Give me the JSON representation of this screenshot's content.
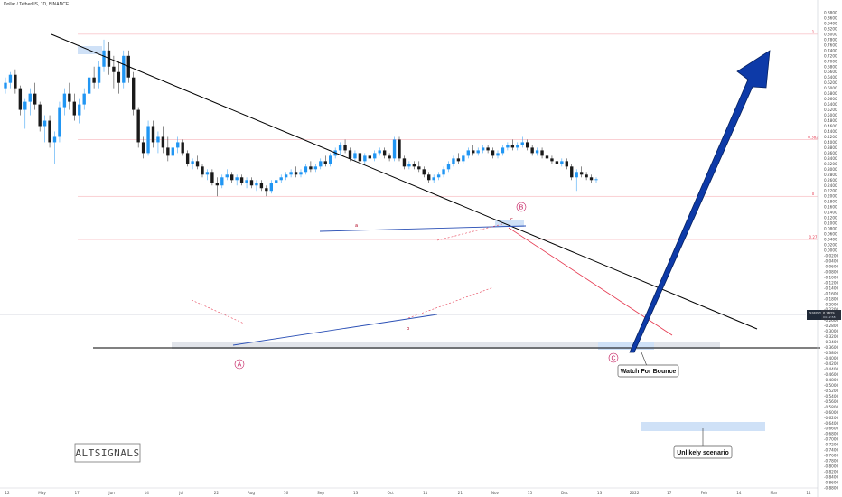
{
  "header": {
    "title": "Dollar / TetherUS, 1D, BINANCE"
  },
  "watermark": "ALTSIGNALS",
  "colors": {
    "up": "#2196f3",
    "down": "#1a1a1a",
    "trendline": "#000000",
    "blue_line": "#2a4fb5",
    "red_line": "#e53950",
    "fib": "#f5a0a8",
    "big_arrow": "#0d3aa8",
    "zone": "#cfe1f7",
    "marker": "#c2185b"
  },
  "annotations": {
    "point_A": "A",
    "point_B": "B",
    "point_C": "C",
    "wave_a": "a",
    "wave_b": "b",
    "wave_c": "c",
    "callout_bounce": "Watch For Bounce",
    "callout_unlikely": "Unlikely scenario"
  },
  "chart_data": {
    "type": "candlestick",
    "title": "Dollar / TetherUS, 1D, BINANCE",
    "ylim": [
      -0.88,
      0.9
    ],
    "y_ticks": [
      0.88,
      0.86,
      0.84,
      0.82,
      0.8,
      0.78,
      0.76,
      0.74,
      0.72,
      0.7,
      0.68,
      0.66,
      0.64,
      0.62,
      0.6,
      0.58,
      0.56,
      0.54,
      0.52,
      0.5,
      0.48,
      0.46,
      0.44,
      0.42,
      0.4,
      0.38,
      0.36,
      0.34,
      0.32,
      0.3,
      0.28,
      0.26,
      0.24,
      0.22,
      0.2,
      0.18,
      0.16,
      0.14,
      0.12,
      0.1,
      0.08,
      0.06,
      0.04,
      0.02,
      0.0,
      -0.02,
      -0.04,
      -0.06,
      -0.08,
      -0.1,
      -0.12,
      -0.14,
      -0.16,
      -0.18,
      -0.2,
      -0.22,
      -0.24,
      -0.26,
      -0.28,
      -0.3,
      -0.32,
      -0.34,
      -0.36,
      -0.38,
      -0.4,
      -0.42,
      -0.44,
      -0.46,
      -0.48,
      -0.5,
      -0.52,
      -0.54,
      -0.56,
      -0.58,
      -0.6,
      -0.62,
      -0.64,
      -0.66,
      -0.68,
      -0.7,
      -0.72,
      -0.74,
      -0.76,
      -0.78,
      -0.8,
      -0.82,
      -0.84,
      -0.86,
      -0.88
    ],
    "x_ticks": [
      "12",
      "May",
      "17",
      "Jun",
      "14",
      "Jul",
      "22",
      "Aug",
      "16",
      "Sep",
      "13",
      "Oct",
      "11",
      "21",
      "Nov",
      "15",
      "Dec",
      "13",
      "2022",
      "17",
      "Feb",
      "14",
      "Mar",
      "14"
    ],
    "current_price": {
      "label": "DLNUSDT",
      "value": "0.2629",
      "countdown": "04:12:58"
    },
    "fib_levels": [
      {
        "label": "1",
        "value": 0.8
      },
      {
        "label": "0.382",
        "value": 0.41
      },
      {
        "label": "0",
        "value": 0.2
      },
      {
        "label": "0.27",
        "value": 0.04
      }
    ],
    "candles": [
      [
        0.6,
        0.64,
        0.58,
        0.62
      ],
      [
        0.62,
        0.66,
        0.6,
        0.65
      ],
      [
        0.65,
        0.67,
        0.58,
        0.6
      ],
      [
        0.6,
        0.61,
        0.5,
        0.52
      ],
      [
        0.52,
        0.56,
        0.45,
        0.55
      ],
      [
        0.55,
        0.6,
        0.5,
        0.58
      ],
      [
        0.58,
        0.62,
        0.52,
        0.54
      ],
      [
        0.54,
        0.55,
        0.44,
        0.46
      ],
      [
        0.46,
        0.5,
        0.4,
        0.48
      ],
      [
        0.48,
        0.5,
        0.38,
        0.4
      ],
      [
        0.4,
        0.44,
        0.32,
        0.42
      ],
      [
        0.42,
        0.55,
        0.4,
        0.53
      ],
      [
        0.53,
        0.6,
        0.5,
        0.58
      ],
      [
        0.58,
        0.62,
        0.52,
        0.55
      ],
      [
        0.55,
        0.58,
        0.48,
        0.5
      ],
      [
        0.5,
        0.56,
        0.47,
        0.54
      ],
      [
        0.54,
        0.6,
        0.52,
        0.58
      ],
      [
        0.58,
        0.66,
        0.56,
        0.64
      ],
      [
        0.64,
        0.68,
        0.6,
        0.62
      ],
      [
        0.62,
        0.7,
        0.6,
        0.68
      ],
      [
        0.68,
        0.78,
        0.66,
        0.74
      ],
      [
        0.74,
        0.77,
        0.65,
        0.68
      ],
      [
        0.68,
        0.72,
        0.6,
        0.66
      ],
      [
        0.66,
        0.7,
        0.58,
        0.62
      ],
      [
        0.62,
        0.74,
        0.6,
        0.72
      ],
      [
        0.72,
        0.74,
        0.62,
        0.64
      ],
      [
        0.64,
        0.66,
        0.5,
        0.52
      ],
      [
        0.52,
        0.53,
        0.38,
        0.4
      ],
      [
        0.4,
        0.42,
        0.34,
        0.36
      ],
      [
        0.36,
        0.48,
        0.35,
        0.46
      ],
      [
        0.46,
        0.48,
        0.38,
        0.4
      ],
      [
        0.4,
        0.44,
        0.36,
        0.42
      ],
      [
        0.42,
        0.46,
        0.36,
        0.38
      ],
      [
        0.38,
        0.42,
        0.33,
        0.35
      ],
      [
        0.35,
        0.4,
        0.33,
        0.38
      ],
      [
        0.38,
        0.42,
        0.36,
        0.4
      ],
      [
        0.4,
        0.41,
        0.35,
        0.36
      ],
      [
        0.36,
        0.37,
        0.31,
        0.32
      ],
      [
        0.32,
        0.34,
        0.3,
        0.33
      ],
      [
        0.33,
        0.35,
        0.3,
        0.31
      ],
      [
        0.31,
        0.32,
        0.27,
        0.28
      ],
      [
        0.28,
        0.3,
        0.26,
        0.29
      ],
      [
        0.29,
        0.3,
        0.24,
        0.25
      ],
      [
        0.25,
        0.27,
        0.2,
        0.24
      ],
      [
        0.24,
        0.28,
        0.23,
        0.27
      ],
      [
        0.27,
        0.3,
        0.26,
        0.28
      ],
      [
        0.28,
        0.29,
        0.25,
        0.26
      ],
      [
        0.26,
        0.28,
        0.24,
        0.27
      ],
      [
        0.27,
        0.28,
        0.24,
        0.25
      ],
      [
        0.25,
        0.27,
        0.23,
        0.26
      ],
      [
        0.26,
        0.27,
        0.23,
        0.24
      ],
      [
        0.24,
        0.26,
        0.22,
        0.25
      ],
      [
        0.25,
        0.26,
        0.22,
        0.23
      ],
      [
        0.23,
        0.24,
        0.2,
        0.22
      ],
      [
        0.22,
        0.26,
        0.21,
        0.25
      ],
      [
        0.25,
        0.27,
        0.24,
        0.26
      ],
      [
        0.26,
        0.28,
        0.25,
        0.27
      ],
      [
        0.27,
        0.29,
        0.26,
        0.28
      ],
      [
        0.28,
        0.3,
        0.27,
        0.29
      ],
      [
        0.29,
        0.31,
        0.27,
        0.28
      ],
      [
        0.28,
        0.3,
        0.27,
        0.29
      ],
      [
        0.29,
        0.32,
        0.28,
        0.31
      ],
      [
        0.31,
        0.33,
        0.29,
        0.3
      ],
      [
        0.3,
        0.32,
        0.29,
        0.31
      ],
      [
        0.31,
        0.34,
        0.3,
        0.33
      ],
      [
        0.33,
        0.35,
        0.31,
        0.32
      ],
      [
        0.32,
        0.36,
        0.31,
        0.35
      ],
      [
        0.35,
        0.38,
        0.34,
        0.37
      ],
      [
        0.37,
        0.4,
        0.35,
        0.39
      ],
      [
        0.39,
        0.41,
        0.36,
        0.37
      ],
      [
        0.37,
        0.38,
        0.33,
        0.34
      ],
      [
        0.34,
        0.37,
        0.33,
        0.36
      ],
      [
        0.36,
        0.37,
        0.32,
        0.33
      ],
      [
        0.33,
        0.36,
        0.32,
        0.35
      ],
      [
        0.35,
        0.36,
        0.33,
        0.34
      ],
      [
        0.34,
        0.37,
        0.33,
        0.36
      ],
      [
        0.36,
        0.38,
        0.35,
        0.37
      ],
      [
        0.37,
        0.38,
        0.34,
        0.35
      ],
      [
        0.35,
        0.36,
        0.33,
        0.34
      ],
      [
        0.34,
        0.42,
        0.33,
        0.41
      ],
      [
        0.41,
        0.42,
        0.33,
        0.34
      ],
      [
        0.34,
        0.35,
        0.3,
        0.31
      ],
      [
        0.31,
        0.33,
        0.3,
        0.32
      ],
      [
        0.32,
        0.33,
        0.3,
        0.31
      ],
      [
        0.31,
        0.33,
        0.29,
        0.3
      ],
      [
        0.3,
        0.31,
        0.27,
        0.28
      ],
      [
        0.28,
        0.29,
        0.25,
        0.26
      ],
      [
        0.26,
        0.28,
        0.25,
        0.27
      ],
      [
        0.27,
        0.29,
        0.26,
        0.28
      ],
      [
        0.28,
        0.31,
        0.27,
        0.3
      ],
      [
        0.3,
        0.33,
        0.29,
        0.32
      ],
      [
        0.32,
        0.35,
        0.31,
        0.34
      ],
      [
        0.34,
        0.36,
        0.32,
        0.33
      ],
      [
        0.33,
        0.36,
        0.32,
        0.35
      ],
      [
        0.35,
        0.38,
        0.34,
        0.37
      ],
      [
        0.37,
        0.39,
        0.35,
        0.36
      ],
      [
        0.36,
        0.38,
        0.35,
        0.37
      ],
      [
        0.37,
        0.39,
        0.36,
        0.38
      ],
      [
        0.38,
        0.39,
        0.36,
        0.37
      ],
      [
        0.37,
        0.38,
        0.34,
        0.35
      ],
      [
        0.35,
        0.37,
        0.34,
        0.36
      ],
      [
        0.36,
        0.39,
        0.35,
        0.38
      ],
      [
        0.38,
        0.4,
        0.37,
        0.39
      ],
      [
        0.39,
        0.41,
        0.37,
        0.38
      ],
      [
        0.38,
        0.4,
        0.37,
        0.39
      ],
      [
        0.39,
        0.42,
        0.38,
        0.4
      ],
      [
        0.4,
        0.41,
        0.37,
        0.38
      ],
      [
        0.38,
        0.39,
        0.35,
        0.36
      ],
      [
        0.36,
        0.38,
        0.35,
        0.37
      ],
      [
        0.37,
        0.38,
        0.34,
        0.35
      ],
      [
        0.35,
        0.36,
        0.33,
        0.34
      ],
      [
        0.34,
        0.35,
        0.32,
        0.33
      ],
      [
        0.33,
        0.34,
        0.31,
        0.32
      ],
      [
        0.32,
        0.34,
        0.31,
        0.33
      ],
      [
        0.33,
        0.34,
        0.3,
        0.31
      ],
      [
        0.31,
        0.32,
        0.26,
        0.27
      ],
      [
        0.27,
        0.3,
        0.22,
        0.29
      ],
      [
        0.29,
        0.31,
        0.27,
        0.28
      ],
      [
        0.28,
        0.29,
        0.26,
        0.27
      ],
      [
        0.27,
        0.28,
        0.25,
        0.26
      ],
      [
        0.26,
        0.27,
        0.25,
        0.263
      ]
    ]
  }
}
